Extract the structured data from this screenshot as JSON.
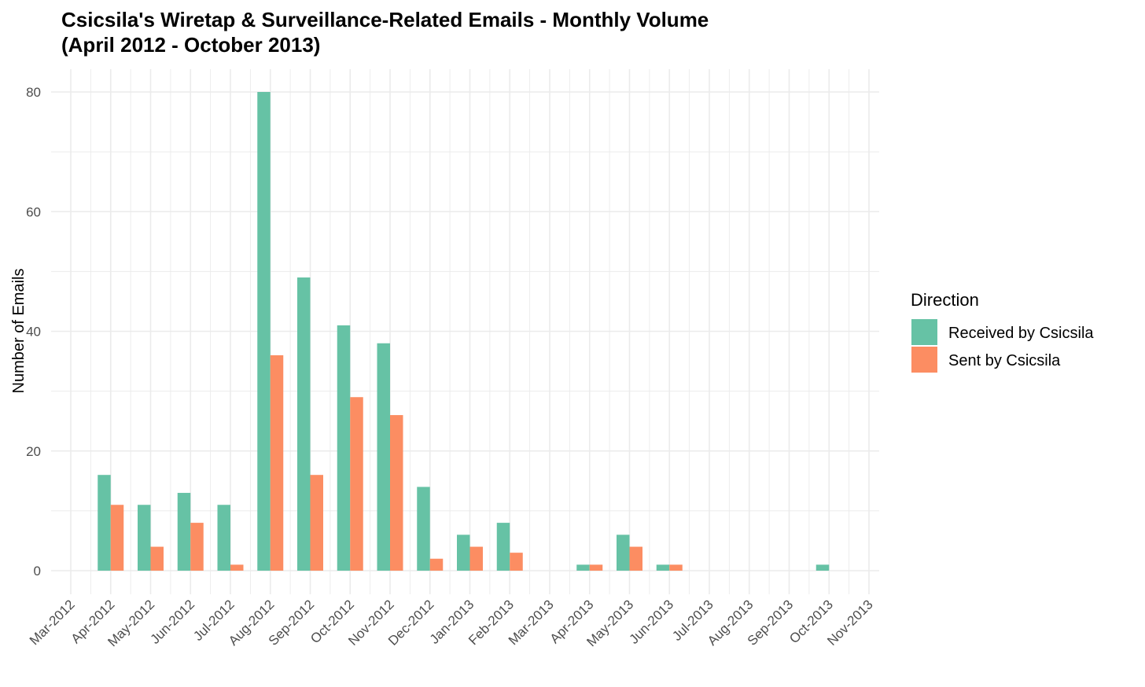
{
  "chart_data": {
    "type": "bar",
    "title": "Csicsila's Wiretap & Surveillance-Related Emails - Monthly Volume",
    "subtitle": "(April 2012 - October 2013)",
    "xlabel": "",
    "ylabel": "Number of Emails",
    "ylim": [
      -4,
      84
    ],
    "y_ticks": [
      0,
      20,
      40,
      60,
      80
    ],
    "grid": true,
    "x_tick_labels": [
      "Mar-2012",
      "Apr-2012",
      "May-2012",
      "Jun-2012",
      "Jul-2012",
      "Aug-2012",
      "Sep-2012",
      "Oct-2012",
      "Nov-2012",
      "Dec-2012",
      "Jan-2013",
      "Feb-2013",
      "Mar-2013",
      "Apr-2013",
      "May-2013",
      "Jun-2013",
      "Jul-2013",
      "Aug-2013",
      "Sep-2013",
      "Oct-2013",
      "Nov-2013"
    ],
    "categories": [
      "Apr-2012",
      "May-2012",
      "Jun-2012",
      "Jul-2012",
      "Aug-2012",
      "Sep-2012",
      "Oct-2012",
      "Nov-2012",
      "Dec-2012",
      "Jan-2013",
      "Feb-2013",
      "Mar-2013",
      "Apr-2013",
      "May-2013",
      "Jun-2013",
      "Jul-2013",
      "Aug-2013",
      "Sep-2013",
      "Oct-2013"
    ],
    "legend": {
      "title": "Direction",
      "placement": "right"
    },
    "series": [
      {
        "name": "Received by Csicsila",
        "color": "#66C2A5",
        "values": [
          16,
          11,
          13,
          11,
          80,
          49,
          41,
          38,
          14,
          6,
          8,
          0,
          1,
          6,
          1,
          0,
          0,
          0,
          1
        ]
      },
      {
        "name": "Sent by Csicsila",
        "color": "#FC8D62",
        "values": [
          11,
          4,
          8,
          1,
          36,
          16,
          29,
          26,
          2,
          4,
          3,
          0,
          1,
          4,
          1,
          0,
          0,
          0,
          0
        ]
      }
    ]
  }
}
